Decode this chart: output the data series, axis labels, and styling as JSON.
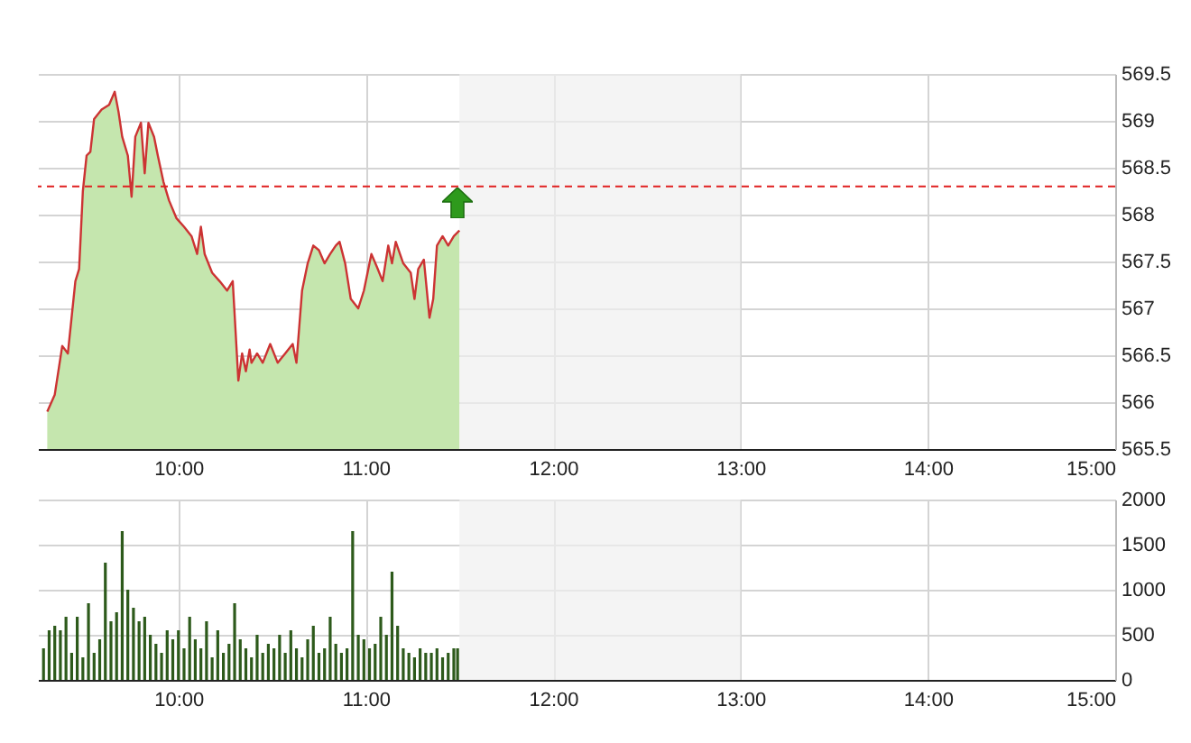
{
  "chart_data": [
    {
      "type": "area",
      "x": [
        9.3,
        9.34,
        9.38,
        9.41,
        9.45,
        9.47,
        9.49,
        9.51,
        9.53,
        9.55,
        9.59,
        9.63,
        9.66,
        9.68,
        9.7,
        9.73,
        9.75,
        9.77,
        9.8,
        9.82,
        9.84,
        9.87,
        9.89,
        9.92,
        9.95,
        9.99,
        10.03,
        10.07,
        10.1,
        10.12,
        10.14,
        10.18,
        10.22,
        10.26,
        10.29,
        10.32,
        10.34,
        10.36,
        10.38,
        10.39,
        10.42,
        10.45,
        10.49,
        10.53,
        10.57,
        10.61,
        10.63,
        10.66,
        10.69,
        10.72,
        10.75,
        10.78,
        10.81,
        10.84,
        10.86,
        10.89,
        10.92,
        10.96,
        10.99,
        11.03,
        11.06,
        11.09,
        11.12,
        11.14,
        11.16,
        11.2,
        11.24,
        11.26,
        11.28,
        11.31,
        11.34,
        11.36,
        11.38,
        11.41,
        11.44,
        11.47,
        11.5
      ],
      "series": [
        {
          "color": "#c5e6ae",
          "values": [
            565.9,
            566.08,
            566.6,
            566.52,
            567.29,
            567.42,
            568.25,
            568.63,
            568.67,
            569.02,
            569.12,
            569.17,
            569.31,
            569.1,
            568.83,
            568.63,
            568.19,
            568.83,
            568.98,
            568.44,
            568.98,
            568.83,
            568.63,
            568.35,
            568.15,
            567.96,
            567.87,
            567.77,
            567.58,
            567.87,
            567.58,
            567.38,
            567.29,
            567.19,
            567.29,
            566.23,
            566.52,
            566.33,
            566.56,
            566.42,
            566.52,
            566.42,
            566.62,
            566.42,
            566.52,
            566.62,
            566.42,
            567.19,
            567.48,
            567.67,
            567.62,
            567.48,
            567.58,
            567.67,
            567.71,
            567.48,
            567.1,
            567.0,
            567.19,
            567.58,
            567.44,
            567.29,
            567.67,
            567.48,
            567.71,
            567.48,
            567.38,
            567.1,
            567.42,
            567.52,
            566.9,
            567.1,
            567.67,
            567.77,
            567.67,
            567.77,
            567.83
          ]
        },
        {
          "type": "line",
          "color": "#cc3333",
          "values": [
            565.9,
            566.08,
            566.6,
            566.52,
            567.29,
            567.42,
            568.25,
            568.63,
            568.67,
            569.02,
            569.12,
            569.17,
            569.31,
            569.1,
            568.83,
            568.63,
            568.19,
            568.83,
            568.98,
            568.44,
            568.98,
            568.83,
            568.63,
            568.35,
            568.15,
            567.96,
            567.87,
            567.77,
            567.58,
            567.87,
            567.58,
            567.38,
            567.29,
            567.19,
            567.29,
            566.23,
            566.52,
            566.33,
            566.56,
            566.42,
            566.52,
            566.42,
            566.62,
            566.42,
            566.52,
            566.62,
            566.42,
            567.19,
            567.48,
            567.67,
            567.62,
            567.48,
            567.58,
            567.67,
            567.71,
            567.48,
            567.1,
            567.0,
            567.19,
            567.58,
            567.44,
            567.29,
            567.67,
            567.48,
            567.71,
            567.48,
            567.38,
            567.1,
            567.42,
            567.52,
            566.9,
            567.1,
            567.67,
            567.77,
            567.67,
            567.77,
            567.83
          ]
        }
      ],
      "xlim": [
        9.25,
        15
      ],
      "xticks": [
        {
          "value": 10,
          "label": "10:00"
        },
        {
          "value": 11,
          "label": "11:00"
        },
        {
          "value": 12,
          "label": "12:00"
        },
        {
          "value": 13,
          "label": "13:00"
        },
        {
          "value": 14,
          "label": "14:00"
        },
        {
          "value": 15,
          "label": "15:00"
        }
      ],
      "ylim": [
        565.5,
        569.5
      ],
      "yticks": [
        565.5,
        566,
        566.5,
        567,
        567.5,
        568,
        568.5,
        569,
        569.5
      ],
      "grid": true,
      "ref_lines": [
        {
          "axis": "y",
          "value": 568.3,
          "color": "#e02020",
          "line_style": "dashed"
        }
      ],
      "bands": [
        {
          "axis": "x",
          "from": 11.5,
          "to": 13,
          "color": "#f0f0f0"
        }
      ]
    },
    {
      "type": "bar",
      "x": [
        9.28,
        9.31,
        9.34,
        9.37,
        9.4,
        9.43,
        9.46,
        9.49,
        9.52,
        9.55,
        9.58,
        9.61,
        9.64,
        9.67,
        9.7,
        9.73,
        9.76,
        9.79,
        9.82,
        9.85,
        9.88,
        9.91,
        9.94,
        9.97,
        10.0,
        10.03,
        10.06,
        10.09,
        10.12,
        10.15,
        10.18,
        10.21,
        10.24,
        10.27,
        10.3,
        10.33,
        10.36,
        10.39,
        10.42,
        10.45,
        10.48,
        10.51,
        10.54,
        10.57,
        10.6,
        10.63,
        10.66,
        10.69,
        10.72,
        10.75,
        10.78,
        10.81,
        10.84,
        10.87,
        10.9,
        10.93,
        10.96,
        10.99,
        11.02,
        11.05,
        11.08,
        11.11,
        11.14,
        11.17,
        11.2,
        11.23,
        11.26,
        11.29,
        11.32,
        11.35,
        11.38,
        11.41,
        11.44,
        11.47,
        11.49
      ],
      "values": [
        350,
        550,
        600,
        550,
        700,
        300,
        700,
        250,
        850,
        300,
        450,
        1300,
        650,
        750,
        1650,
        1000,
        800,
        650,
        700,
        500,
        400,
        300,
        550,
        450,
        550,
        350,
        700,
        450,
        350,
        650,
        250,
        550,
        300,
        400,
        850,
        450,
        350,
        250,
        500,
        300,
        400,
        350,
        500,
        300,
        550,
        350,
        250,
        450,
        600,
        300,
        350,
        700,
        400,
        300,
        350,
        1650,
        500,
        450,
        350,
        400,
        700,
        500,
        1200,
        600,
        350,
        300,
        250,
        350,
        300,
        300,
        350,
        250,
        300,
        350,
        350
      ],
      "color": "#2d5a1b",
      "xlim": [
        9.25,
        15
      ],
      "xticks": [
        {
          "value": 10,
          "label": "10:00"
        },
        {
          "value": 11,
          "label": "11:00"
        },
        {
          "value": 12,
          "label": "12:00"
        },
        {
          "value": 13,
          "label": "13:00"
        },
        {
          "value": 14,
          "label": "14:00"
        },
        {
          "value": 15,
          "label": "15:00"
        }
      ],
      "ylim": [
        0,
        2000
      ],
      "yticks": [
        0,
        500,
        1000,
        1500,
        2000
      ],
      "grid": true,
      "bands": [
        {
          "axis": "x",
          "from": 11.5,
          "to": 13,
          "color": "#f0f0f0"
        }
      ]
    }
  ]
}
